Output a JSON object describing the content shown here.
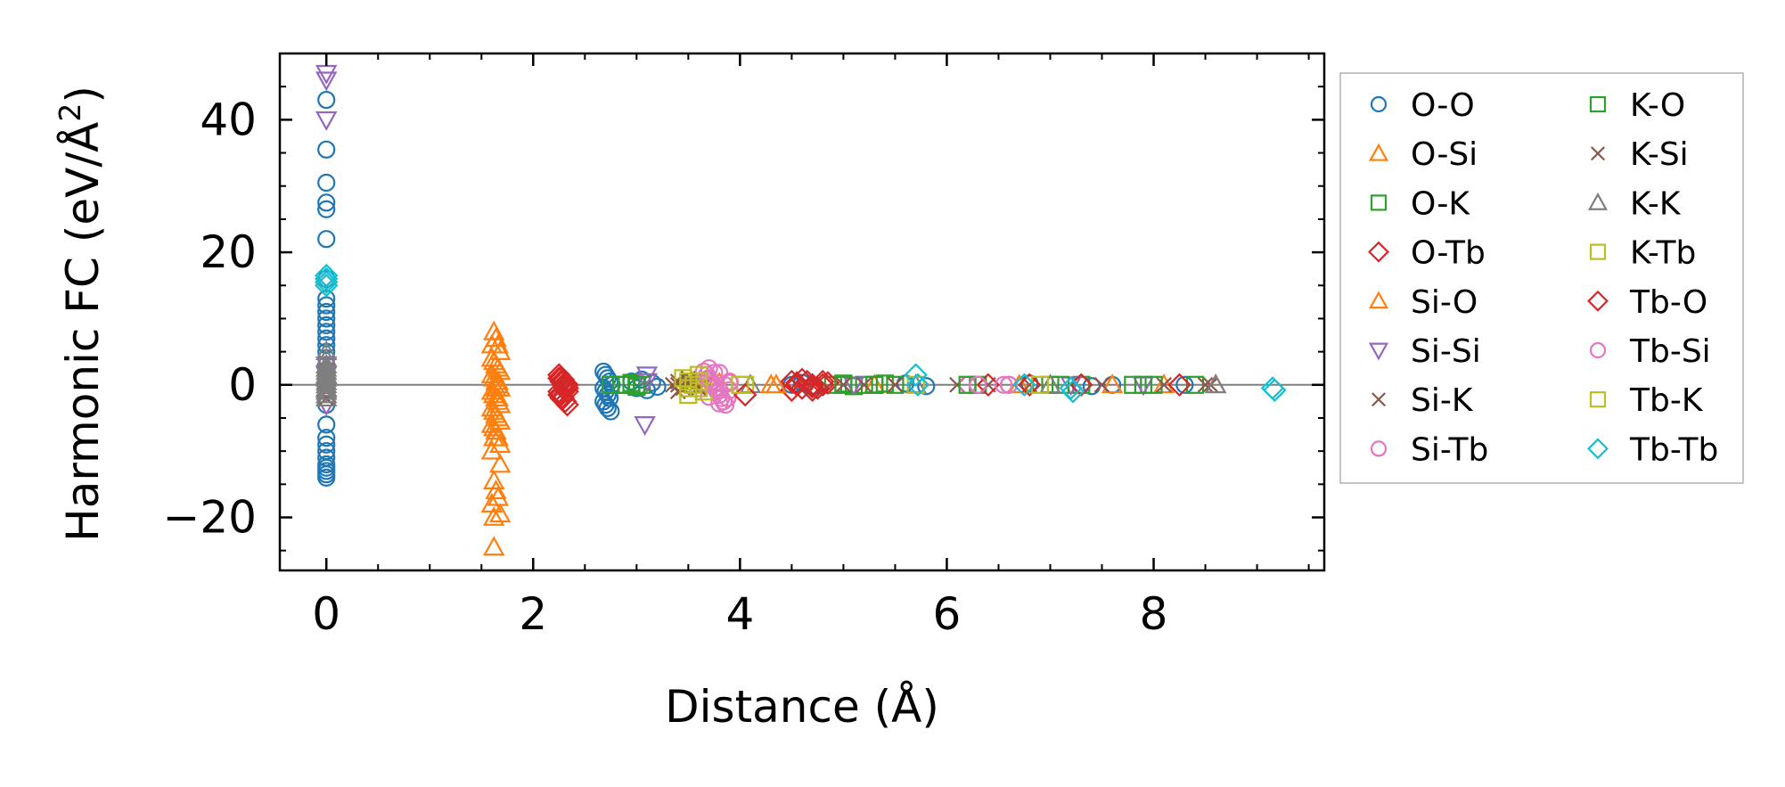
{
  "chart_data": {
    "type": "scatter",
    "title": "",
    "xlabel": "Distance (Å)",
    "ylabel": "Harmonic FC (eV/Å",
    "ylabel_sup": "2",
    "ylabel_close": ")",
    "xlim": [
      -0.45,
      9.65
    ],
    "ylim": [
      -28,
      50
    ],
    "xticks": [
      0,
      2,
      4,
      6,
      8
    ],
    "xtick_labels": [
      "0",
      "2",
      "4",
      "6",
      "8"
    ],
    "yticks": [
      -20,
      0,
      20,
      40
    ],
    "ytick_labels": [
      "−20",
      "0",
      "20",
      "40"
    ],
    "reference_line_y": 0,
    "legend_position": "outside-right",
    "series": [
      {
        "name": "O-O",
        "color": "#1f77b4",
        "marker": "circle",
        "x": [
          0,
          0,
          0,
          0,
          0,
          0,
          0,
          0,
          0,
          0,
          0,
          0,
          0,
          0,
          0,
          0,
          0,
          0,
          0,
          0,
          0,
          0,
          0,
          0,
          0,
          0,
          0,
          0,
          0,
          0,
          0,
          2.68,
          2.7,
          2.72,
          2.74,
          2.76,
          2.68,
          2.7,
          2.72,
          2.74,
          2.68,
          2.7,
          2.72,
          2.75,
          2.95,
          3.0,
          3.05,
          3.1,
          3.15,
          3.2,
          4.5,
          4.6,
          4.7,
          5.6,
          5.8,
          6.6,
          6.8,
          7.3,
          7.4,
          7.6,
          8.3
        ],
        "y": [
          43,
          35.5,
          30.5,
          27.5,
          26.5,
          22,
          16,
          13,
          12,
          11,
          10,
          9,
          8,
          7,
          6,
          5,
          4,
          3,
          -1,
          -3,
          -6,
          -8,
          -9,
          -10,
          -11,
          -12,
          -12.5,
          -13,
          -13.5,
          -14,
          0,
          2,
          1.5,
          1,
          0.5,
          0,
          -0.5,
          -1,
          -1.5,
          -2,
          -2.5,
          -3,
          -3.5,
          -4,
          0.5,
          -0.5,
          0.8,
          -0.8,
          0.3,
          -0.3,
          0,
          0.3,
          -0.3,
          0.2,
          -0.2,
          0,
          0.2,
          0,
          -0.2,
          0,
          0
        ]
      },
      {
        "name": "O-Si",
        "color": "#ff7f0e",
        "marker": "triangle-up",
        "x": [
          1.62,
          1.64,
          1.66,
          1.68,
          1.6,
          1.62,
          1.64,
          1.66,
          1.68,
          1.6,
          1.62,
          1.64,
          1.66,
          1.68,
          1.6,
          1.62,
          1.64,
          1.66,
          1.68,
          1.6,
          1.62,
          1.64,
          1.66,
          1.68,
          1.6,
          1.62,
          1.64,
          1.66,
          1.68,
          1.6,
          1.62,
          1.64,
          1.66,
          1.6,
          1.68,
          1.62,
          1.62,
          1.66,
          1.64,
          3.6,
          3.8,
          4.3,
          5.3,
          6.7,
          7.6,
          8.1,
          8.6
        ],
        "y": [
          8,
          7,
          6,
          5,
          4,
          3.5,
          3,
          2.5,
          2,
          1.5,
          1,
          0.5,
          0,
          -0.5,
          -1,
          -1.5,
          -2,
          -2.5,
          -3,
          -3.5,
          -4,
          -4.5,
          -5,
          -5.5,
          -6,
          -6.5,
          -7,
          -8,
          -9,
          -10,
          -14.5,
          -16,
          -17,
          -18,
          -19.5,
          -20,
          -24.5,
          0.5,
          -0.5,
          0,
          0.3,
          0,
          0,
          0,
          0,
          0,
          0
        ]
      },
      {
        "name": "O-K",
        "color": "#2ca02c",
        "marker": "square",
        "x": [
          2.75,
          2.85,
          2.95,
          3.0,
          3.05,
          4.9,
          5.0,
          5.1,
          5.2,
          5.3,
          5.4,
          5.5,
          6.3,
          7.0,
          7.3,
          7.8,
          8.0
        ],
        "y": [
          0,
          0,
          0.3,
          -0.3,
          0,
          0,
          0.2,
          -0.2,
          0,
          0,
          0.2,
          0,
          0,
          0,
          0,
          0,
          0
        ]
      },
      {
        "name": "O-Tb",
        "color": "#d62728",
        "marker": "diamond",
        "x": [
          2.25,
          2.27,
          2.29,
          2.31,
          2.33,
          2.25,
          2.27,
          2.29,
          2.31,
          2.33,
          2.25,
          2.27,
          2.29,
          2.31,
          2.33,
          2.25,
          2.27,
          2.29,
          2.31,
          2.33,
          4.5,
          4.55,
          4.6,
          4.65,
          4.7,
          4.75,
          4.8,
          4.85,
          4.5,
          4.6,
          4.7,
          4.8
        ],
        "y": [
          1.5,
          1,
          0.5,
          0,
          -0.5,
          -1,
          -1.5,
          -2,
          -2.5,
          -3,
          1,
          0.5,
          0,
          -0.5,
          -1,
          -1.5,
          -2,
          0.8,
          -0.8,
          0,
          0.5,
          0,
          -0.5,
          0.5,
          0,
          -0.5,
          0,
          0.3,
          -0.8,
          0.8,
          -0.8,
          0.5
        ]
      },
      {
        "name": "Si-O",
        "color": "#ff7f0e",
        "marker": "triangle-up",
        "x": [
          1.6,
          1.66,
          1.62,
          1.68,
          3.55,
          3.75,
          4.35
        ],
        "y": [
          6,
          -2,
          -8,
          -12,
          0,
          0.2,
          0
        ]
      },
      {
        "name": "Si-Si",
        "color": "#9467bd",
        "marker": "triangle-down",
        "x": [
          0,
          0,
          0,
          0,
          0,
          0,
          0,
          3.1,
          3.08,
          3.1,
          5.1,
          7.2,
          7.9
        ],
        "y": [
          47,
          46,
          40,
          3,
          1.5,
          -1,
          -3,
          1.5,
          -6,
          0.5,
          0,
          0,
          0
        ]
      },
      {
        "name": "Si-K",
        "color": "#8c564b",
        "marker": "x",
        "x": [
          0,
          0,
          0,
          0,
          0,
          3.35,
          3.4,
          3.45,
          3.5,
          3.55,
          3.6,
          3.65,
          3.4,
          3.5,
          3.6,
          5.0,
          5.5,
          6.1,
          6.8,
          7.5,
          8.1,
          8.55
        ],
        "y": [
          2,
          1,
          0,
          -1,
          -2,
          0,
          0.5,
          -0.5,
          0,
          0.5,
          -0.5,
          0,
          -1,
          1,
          0.8,
          0,
          0,
          0,
          0,
          0,
          0,
          0
        ]
      },
      {
        "name": "Si-Tb",
        "color": "#e377c2",
        "marker": "circle",
        "x": [
          3.65,
          3.68,
          3.7,
          3.72,
          3.74,
          3.76,
          3.78,
          3.8,
          3.82,
          3.84,
          3.86,
          3.88,
          3.7,
          3.75,
          3.8,
          3.85,
          3.9,
          3.7,
          3.8,
          3.9,
          6.2,
          6.6
        ],
        "y": [
          2,
          1.5,
          1,
          0.5,
          0,
          -0.5,
          -1,
          -1.5,
          -2,
          -2.5,
          -3,
          -2,
          2.5,
          1.8,
          -2.8,
          0,
          0.5,
          -1.8,
          1.8,
          -0.8,
          0,
          0
        ]
      },
      {
        "name": "K-O",
        "color": "#2ca02c",
        "marker": "square",
        "x": [
          2.75,
          2.9,
          3.0,
          5.0,
          5.3,
          6.2,
          7.1,
          7.9,
          8.4
        ],
        "y": [
          0,
          0,
          0,
          0,
          0,
          0,
          0,
          0,
          0
        ]
      },
      {
        "name": "K-Si",
        "color": "#8c564b",
        "marker": "x",
        "x": [
          3.4,
          3.5,
          3.6,
          5.2,
          6.4,
          8.5
        ],
        "y": [
          0,
          0.5,
          -0.5,
          0,
          0,
          0
        ]
      },
      {
        "name": "K-K",
        "color": "#7f7f7f",
        "marker": "triangle-up",
        "x": [
          0,
          0,
          0,
          0,
          0,
          0,
          0,
          0,
          0,
          0,
          0,
          0,
          0,
          4.1,
          5.7,
          7.0,
          8.6
        ],
        "y": [
          5,
          4,
          3,
          2.5,
          2,
          1.5,
          1,
          0.5,
          0,
          -0.5,
          -1,
          -1.5,
          -2,
          0,
          0,
          0,
          0
        ]
      },
      {
        "name": "K-Tb",
        "color": "#bcbd22",
        "marker": "square",
        "x": [
          3.45,
          3.5,
          3.55,
          3.6,
          3.65,
          3.5,
          3.6,
          4.05
        ],
        "y": [
          1,
          0.5,
          0,
          -0.5,
          -1,
          -1.5,
          1.5,
          0
        ]
      },
      {
        "name": "Tb-O",
        "color": "#d62728",
        "marker": "diamond",
        "x": [
          2.27,
          2.31,
          4.05,
          4.55,
          4.7,
          6.4,
          6.8,
          7.3,
          8.25
        ],
        "y": [
          0.5,
          -0.5,
          -1.5,
          0.3,
          -0.3,
          0,
          0,
          0,
          0
        ]
      },
      {
        "name": "Tb-Si",
        "color": "#e377c2",
        "marker": "circle",
        "x": [
          3.7,
          3.8,
          3.9,
          6.3,
          6.55
        ],
        "y": [
          0.8,
          -0.8,
          0.3,
          0,
          0
        ]
      },
      {
        "name": "Tb-K",
        "color": "#bcbd22",
        "marker": "square",
        "x": [
          3.5,
          3.6,
          4.0,
          5.7,
          6.9
        ],
        "y": [
          -0.5,
          0.5,
          0,
          0,
          0
        ]
      },
      {
        "name": "Tb-Tb",
        "color": "#17becf",
        "marker": "diamond",
        "x": [
          0,
          0,
          0,
          0,
          5.7,
          5.72,
          6.75,
          7.2,
          7.22,
          9.15,
          9.17
        ],
        "y": [
          16.5,
          16,
          15.5,
          15,
          1.5,
          0,
          0,
          -0.5,
          -1,
          -0.5,
          -0.8
        ]
      }
    ]
  }
}
